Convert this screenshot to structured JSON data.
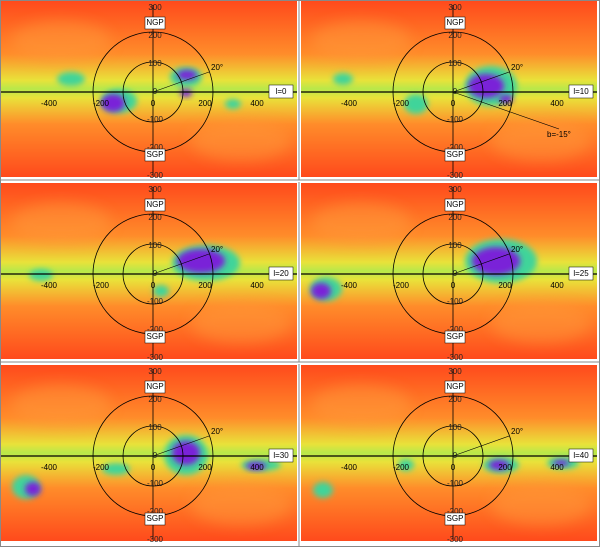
{
  "axes": {
    "xticks": [
      "-400",
      "-200",
      "0",
      "200",
      "400"
    ],
    "yticks": [
      "300",
      "200",
      "100",
      "0",
      "-100",
      "-200",
      "-300"
    ]
  },
  "poles": {
    "north": "NGP",
    "south": "SGP"
  },
  "angle_label": "20°",
  "panels": [
    {
      "label": "l=0"
    },
    {
      "label": "l=10",
      "note": "b=-15°"
    },
    {
      "label": "l=20"
    },
    {
      "label": "l=25"
    },
    {
      "label": "l=30"
    },
    {
      "label": "l=40"
    }
  ]
}
